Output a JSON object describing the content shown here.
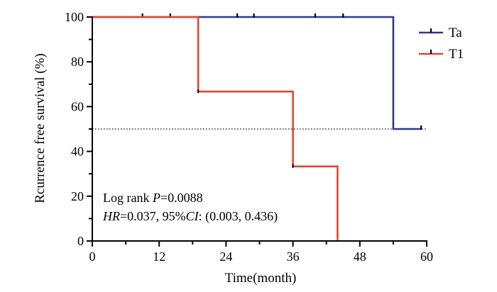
{
  "chart_data": {
    "type": "line",
    "subtype": "kaplan-meier-step",
    "title": "",
    "xlabel": "Time(month)",
    "ylabel": "Rcurrence free survival (%)",
    "xlim": [
      0,
      60
    ],
    "ylim": [
      0,
      100
    ],
    "x_ticks": [
      0,
      12,
      24,
      36,
      48,
      60
    ],
    "y_ticks": [
      0,
      20,
      40,
      60,
      80,
      100
    ],
    "grid": false,
    "legend_position": "top-right",
    "reference_line": {
      "y": 50,
      "style": "dotted",
      "x_range": [
        0,
        60
      ]
    },
    "series": [
      {
        "name": "Ta",
        "color": "#2e3a8c",
        "steps": [
          [
            0,
            100
          ],
          [
            54,
            100
          ],
          [
            54,
            50
          ],
          [
            59,
            50
          ]
        ],
        "censor_times": [
          9,
          14,
          26,
          29,
          40,
          45,
          59
        ],
        "censor_values": [
          100,
          100,
          100,
          100,
          100,
          100,
          50
        ]
      },
      {
        "name": "T1",
        "color": "#e8452c",
        "steps": [
          [
            0,
            100
          ],
          [
            19,
            100
          ],
          [
            19,
            66.7
          ],
          [
            36,
            66.7
          ],
          [
            36,
            33.3
          ],
          [
            44,
            33.3
          ],
          [
            44,
            0
          ]
        ],
        "censor_times": [],
        "censor_values": []
      }
    ],
    "annotations": {
      "line1_prefix": "Log rank ",
      "line1_stat": "P",
      "line1_value": "=0.0088",
      "line2_hr": "HR",
      "line2_mid": "=0.037, 95%",
      "line2_ci": "CI",
      "line2_end": ": (0.003, 0.436)"
    }
  }
}
